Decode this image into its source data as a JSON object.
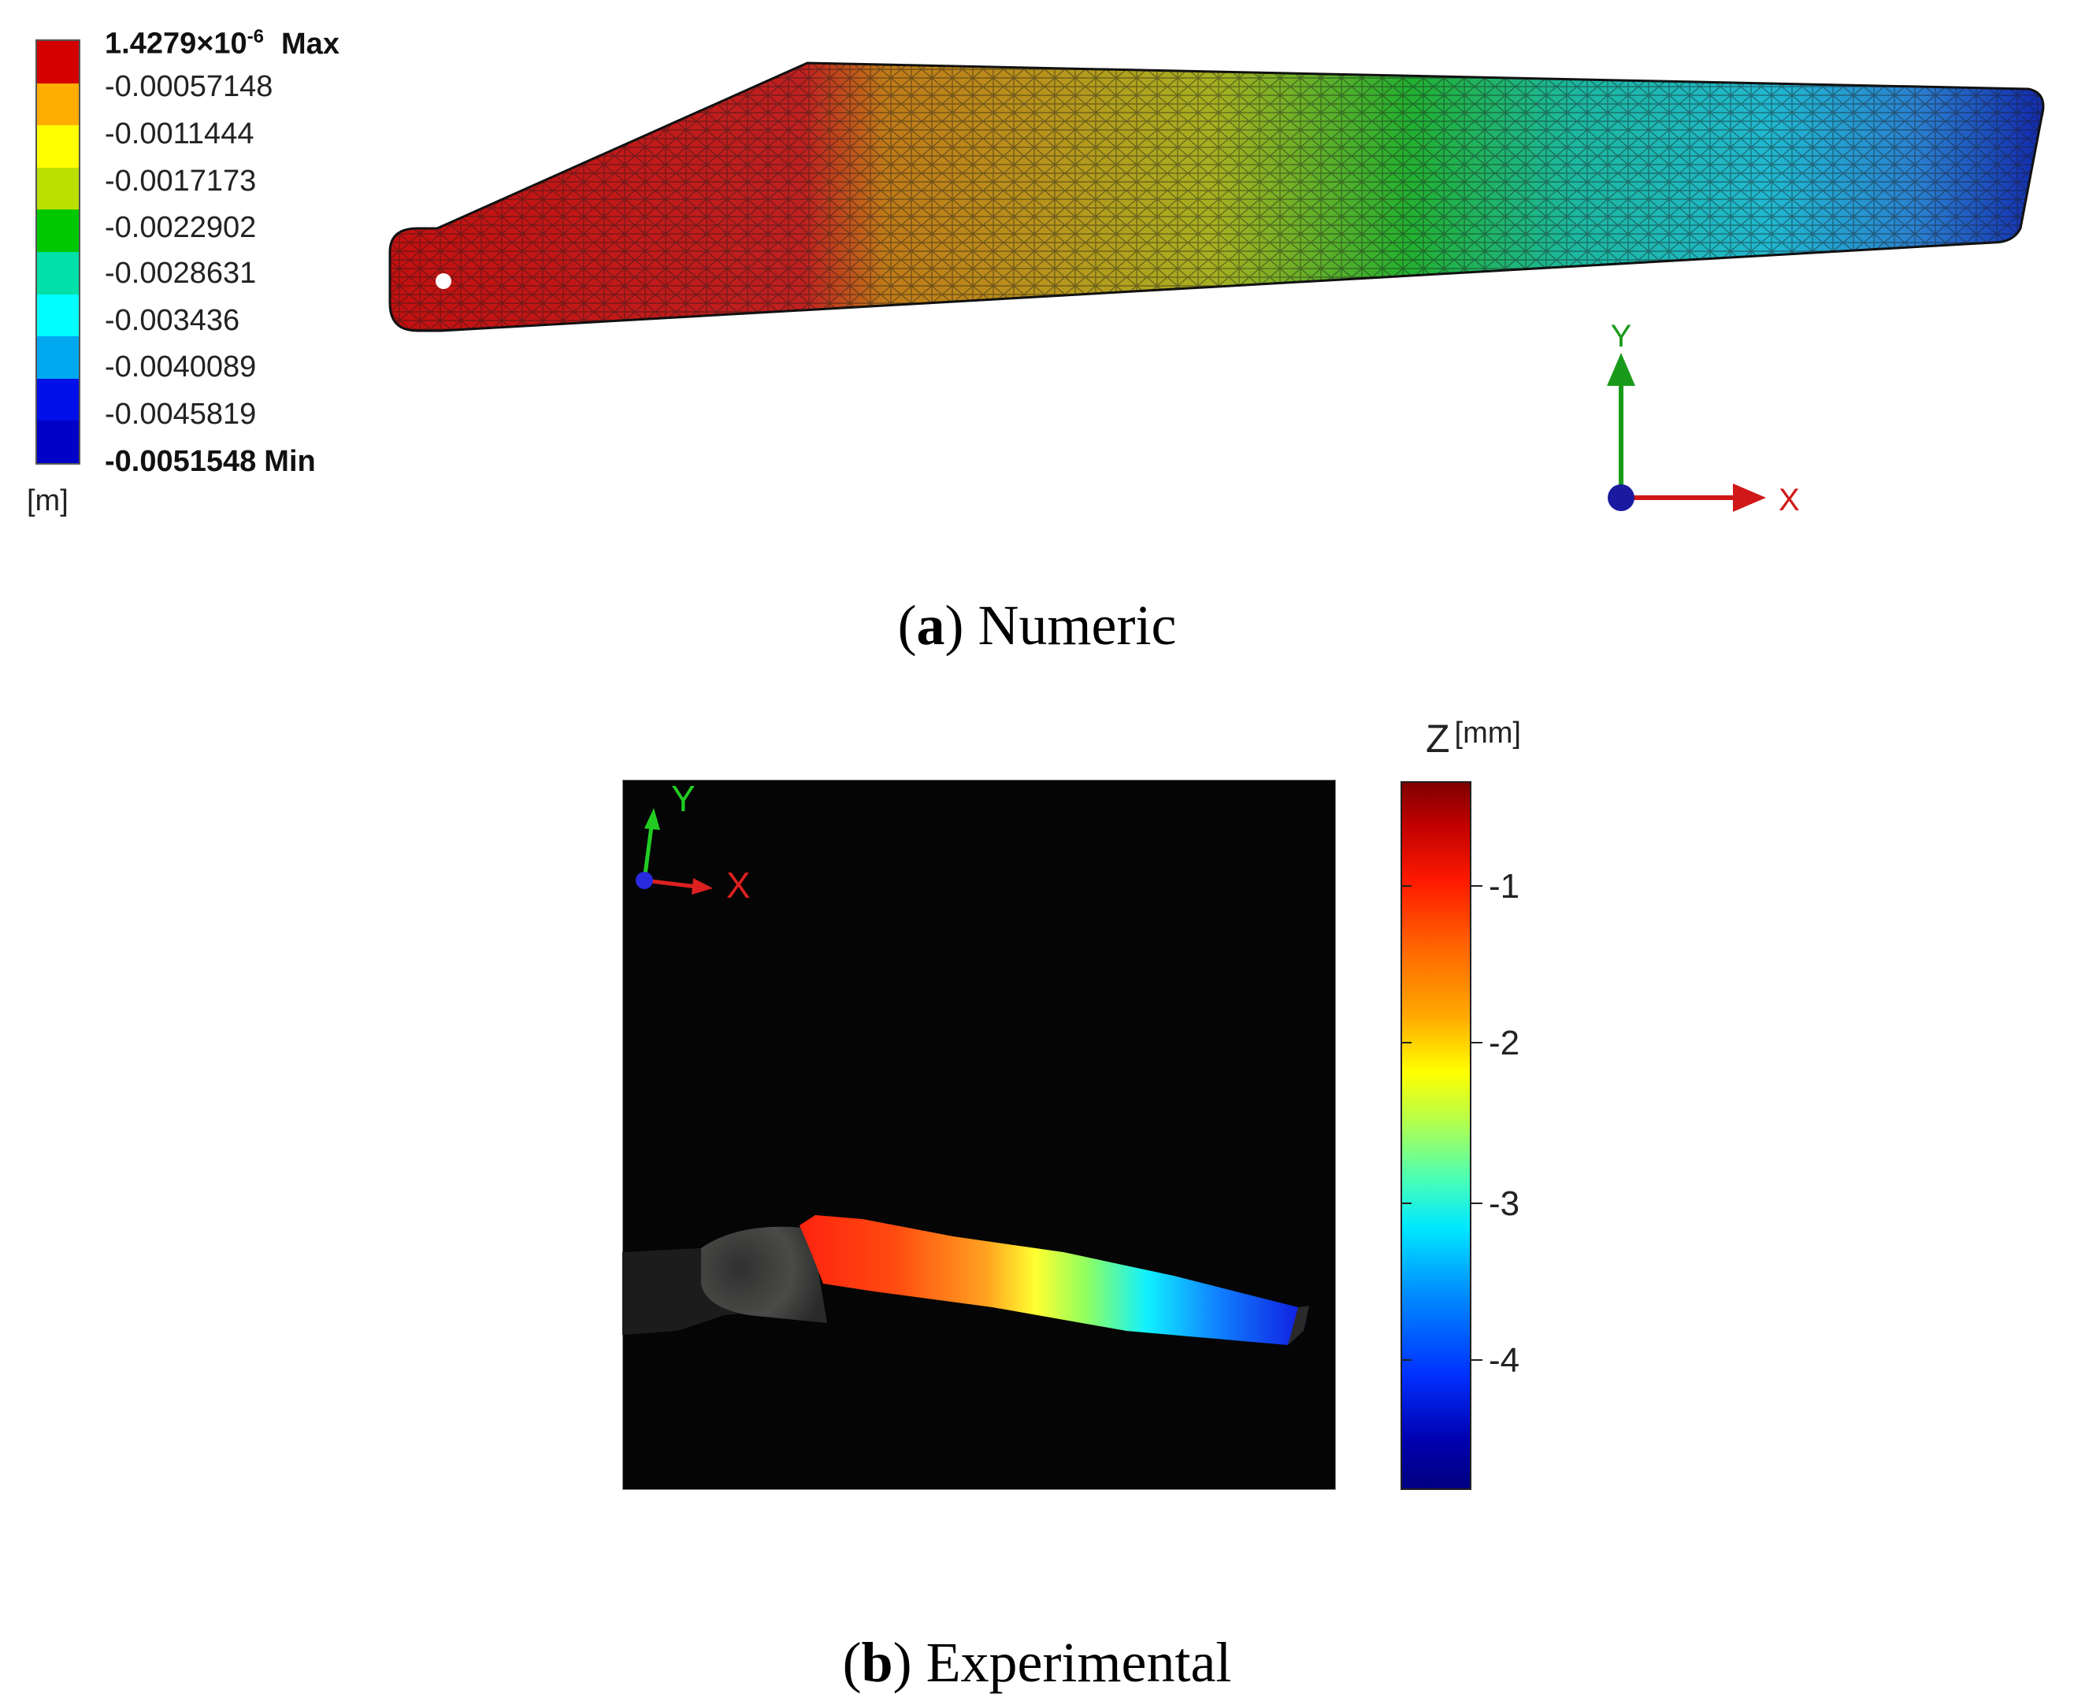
{
  "panel_a": {
    "legend": {
      "max_label": {
        "mantissa": "1.4279×10",
        "exponent": "-6",
        "tag": "Max"
      },
      "labels": [
        "-0.00057148",
        "-0.0011444",
        "-0.0017173",
        "-0.0022902",
        "-0.0028631",
        "-0.003436",
        "-0.0040089",
        "-0.0045819"
      ],
      "min_label": {
        "value": "-0.0051548",
        "tag": "Min"
      },
      "unit": "[m]",
      "colors": [
        "#d40000",
        "#ffad00",
        "#ffff00",
        "#bbe000",
        "#00c800",
        "#00e0a8",
        "#00ffff",
        "#00a8f0",
        "#0010e8",
        "#0000c8"
      ]
    },
    "axis_y": "Y",
    "axis_x": "X",
    "caption_letter": "a",
    "caption_text": "Numeric"
  },
  "panel_b": {
    "axis_y": "Y",
    "axis_x": "X",
    "colorbar": {
      "title": "Z",
      "unit": "[mm]",
      "ticks": [
        "-1",
        "-2",
        "-3",
        "-4"
      ]
    },
    "caption_letter": "b",
    "caption_text": "Experimental"
  }
}
